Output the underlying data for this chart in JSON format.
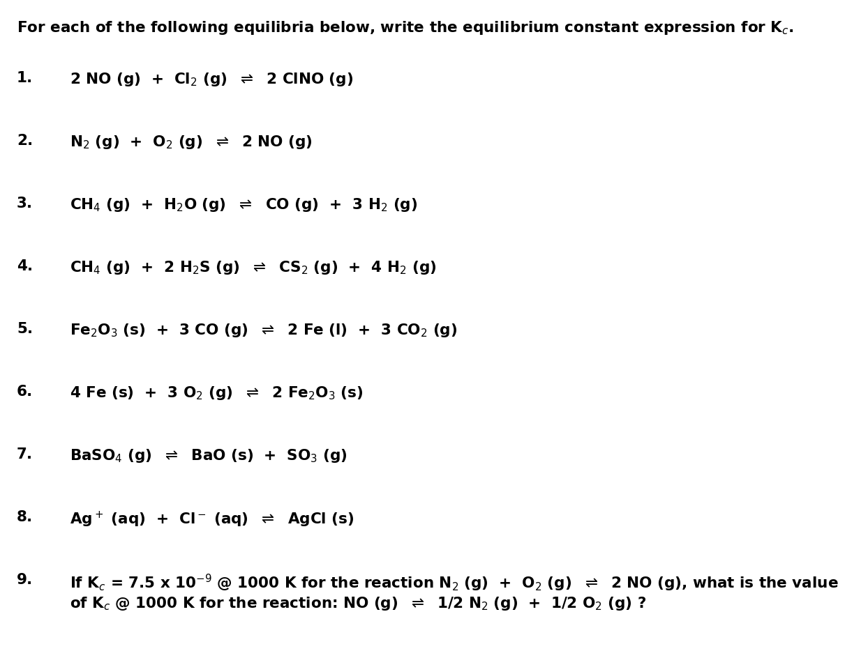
{
  "background_color": "#ffffff",
  "text_color": "#000000",
  "font_size": 15.5,
  "title": "For each of the following equilibria below, write the equilibrium constant expression for K$_c$.",
  "items": [
    {
      "number": "1.",
      "equation": "2 NO (g)  +  Cl$_2$ (g)  $\\rightleftharpoons$  2 ClNO (g)"
    },
    {
      "number": "2.",
      "equation": "N$_2$ (g)  +  O$_2$ (g)  $\\rightleftharpoons$  2 NO (g)"
    },
    {
      "number": "3.",
      "equation": "CH$_4$ (g)  +  H$_2$O (g)  $\\rightleftharpoons$  CO (g)  +  3 H$_2$ (g)"
    },
    {
      "number": "4.",
      "equation": "CH$_4$ (g)  +  2 H$_2$S (g)  $\\rightleftharpoons$  CS$_2$ (g)  +  4 H$_2$ (g)"
    },
    {
      "number": "5.",
      "equation": "Fe$_2$O$_3$ (s)  +  3 CO (g)  $\\rightleftharpoons$  2 Fe (l)  +  3 CO$_2$ (g)"
    },
    {
      "number": "6.",
      "equation": "4 Fe (s)  +  3 O$_2$ (g)  $\\rightleftharpoons$  2 Fe$_2$O$_3$ (s)"
    },
    {
      "number": "7.",
      "equation": "BaSO$_4$ (g)  $\\rightleftharpoons$  BaO (s)  +  SO$_3$ (g)"
    },
    {
      "number": "8.",
      "equation": "Ag$^+$ (aq)  +  Cl$^-$ (aq)  $\\rightleftharpoons$  AgCl (s)"
    }
  ],
  "item9_number": "9.",
  "item9_line1": "If K$_c$ = 7.5 x 10$^{-9}$ @ 1000 K for the reaction N$_2$ (g)  +  O$_2$ (g)  $\\rightleftharpoons$  2 NO (g), what is the value",
  "item9_line2": "of K$_c$ @ 1000 K for the reaction: NO (g)  $\\rightleftharpoons$  1/2 N$_2$ (g)  +  1/2 O$_2$ (g) ?"
}
